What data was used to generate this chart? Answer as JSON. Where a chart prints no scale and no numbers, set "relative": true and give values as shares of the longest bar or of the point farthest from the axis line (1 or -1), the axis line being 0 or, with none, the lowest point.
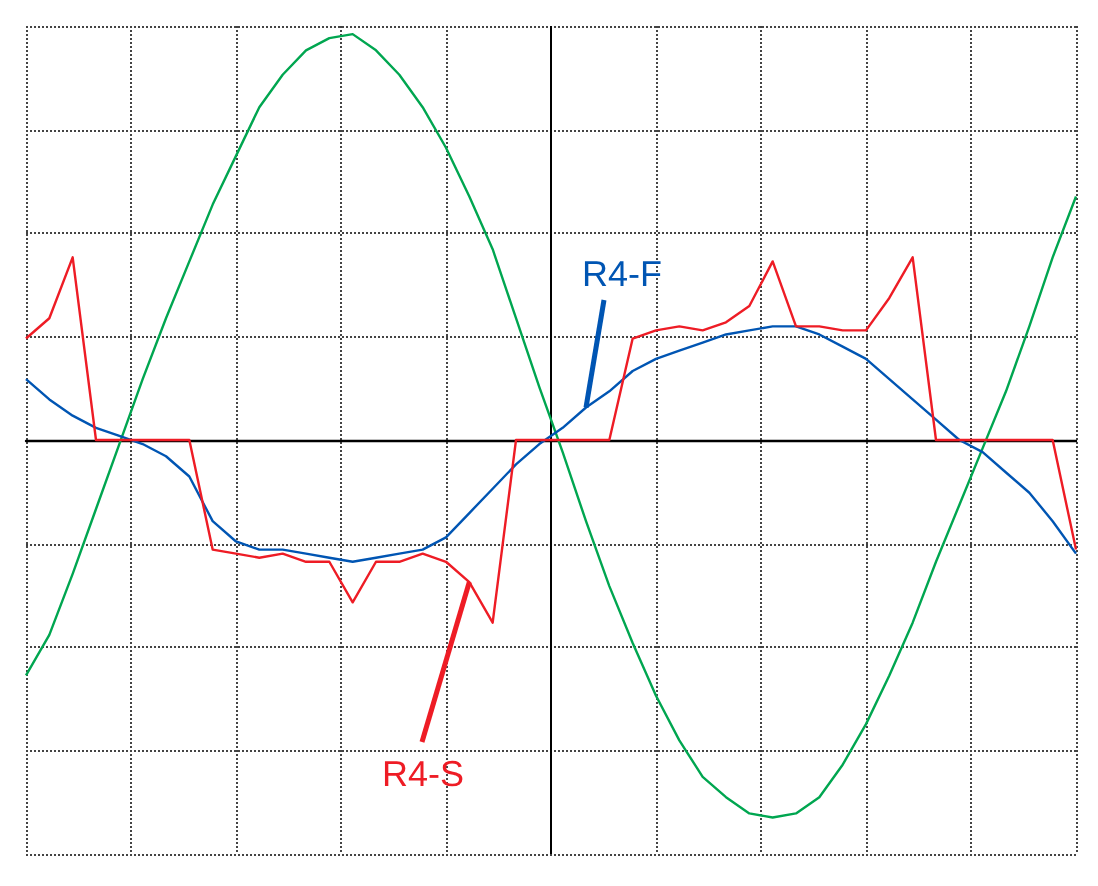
{
  "chart_data": {
    "type": "line",
    "relative": true,
    "grid": true,
    "legend": false,
    "marker": "none",
    "line_style": "solid",
    "categories": [
      null,
      null,
      null,
      null,
      null,
      null,
      null,
      null,
      null,
      null,
      null,
      null,
      null,
      null,
      null,
      null,
      null,
      null,
      null,
      null,
      null,
      null,
      null,
      null,
      null,
      null,
      null,
      null,
      null,
      null,
      null,
      null,
      null,
      null,
      null,
      null,
      null,
      null,
      null,
      null,
      null,
      null,
      null,
      null,
      null,
      null
    ],
    "series": [
      {
        "color": "#00a650",
        "values": [
          -0.58,
          -0.48,
          -0.33,
          -0.17,
          -0.01,
          0.15,
          0.3,
          0.44,
          0.58,
          0.7,
          0.82,
          0.9,
          0.96,
          0.99,
          1.0,
          0.96,
          0.9,
          0.82,
          0.72,
          0.6,
          0.47,
          0.3,
          0.13,
          -0.03,
          -0.2,
          -0.36,
          -0.5,
          -0.63,
          -0.74,
          -0.83,
          -0.88,
          -0.92,
          -0.93,
          -0.92,
          -0.88,
          -0.8,
          -0.7,
          -0.58,
          -0.45,
          -0.3,
          -0.16,
          -0.02,
          0.12,
          0.28,
          0.45,
          0.6
        ]
      },
      {
        "name": "R4-F",
        "color": "#0055b3",
        "values": [
          0.15,
          0.1,
          0.06,
          0.03,
          0.01,
          -0.01,
          -0.04,
          -0.09,
          -0.2,
          -0.25,
          -0.27,
          -0.27,
          -0.28,
          -0.29,
          -0.3,
          -0.29,
          -0.28,
          -0.27,
          -0.24,
          -0.18,
          -0.12,
          -0.06,
          -0.01,
          0.03,
          0.08,
          0.12,
          0.17,
          0.2,
          0.22,
          0.24,
          0.26,
          0.27,
          0.28,
          0.28,
          0.26,
          0.23,
          0.2,
          0.15,
          0.1,
          0.05,
          0,
          -0.03,
          -0.08,
          -0.13,
          -0.2,
          -0.28
        ]
      },
      {
        "name": "R4-S",
        "color": "#ee1c25",
        "values": [
          0.25,
          0.3,
          0.45,
          0,
          0,
          0,
          0,
          0,
          -0.27,
          -0.28,
          -0.29,
          -0.28,
          -0.3,
          -0.3,
          -0.4,
          -0.3,
          -0.3,
          -0.28,
          -0.3,
          -0.35,
          -0.45,
          0,
          0,
          0,
          0,
          0,
          0.25,
          0.27,
          0.28,
          0.27,
          0.29,
          0.33,
          0.44,
          0.28,
          0.28,
          0.27,
          0.27,
          0.35,
          0.45,
          0,
          0,
          0,
          0,
          0,
          0,
          -0.27
        ]
      }
    ]
  }
}
